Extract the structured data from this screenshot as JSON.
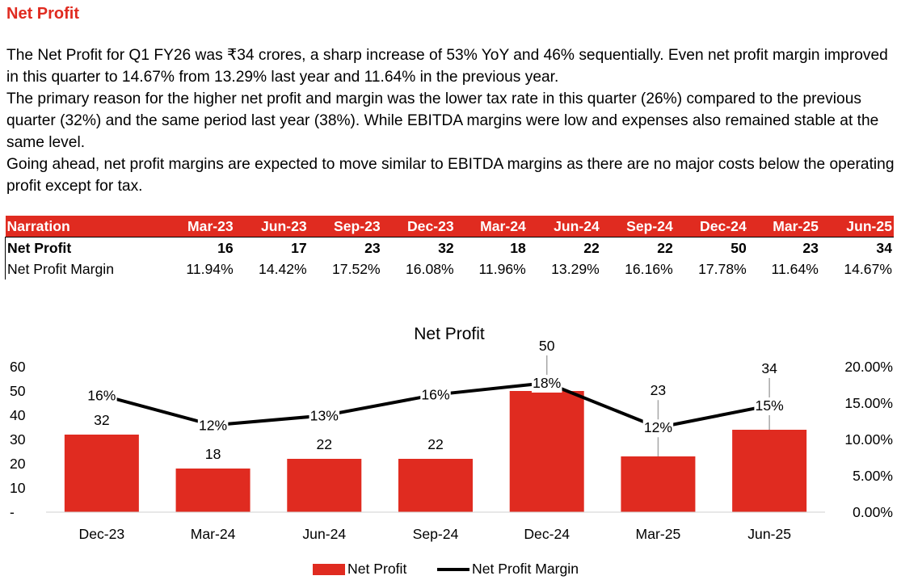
{
  "heading": "Net Profit",
  "paragraphs": [
    "The Net Profit for Q1 FY26 was ₹34 crores, a sharp increase of 53% YoY and 46% sequentially. Even net profit margin improved in this quarter to 14.67% from 13.29% last year and 11.64% in the previous year.",
    "The primary reason for the higher net profit and margin was the lower tax rate in this quarter (26%) compared to the previous quarter (32%) and the same period last year (38%). While EBITDA margins were low and expenses also remained stable at the same level.",
    "Going ahead, net profit margins are expected to move similar to EBITDA margins as there are no major costs below the operating profit except for tax."
  ],
  "table": {
    "header": [
      "Narration",
      "Mar-23",
      "Jun-23",
      "Sep-23",
      "Dec-23",
      "Mar-24",
      "Jun-24",
      "Sep-24",
      "Dec-24",
      "Mar-25",
      "Jun-25"
    ],
    "rows": [
      [
        "Net Profit",
        "16",
        "17",
        "23",
        "32",
        "18",
        "22",
        "22",
        "50",
        "23",
        "34"
      ],
      [
        "Net Profit Margin",
        "11.94%",
        "14.42%",
        "17.52%",
        "16.08%",
        "11.96%",
        "13.29%",
        "16.16%",
        "17.78%",
        "11.64%",
        "14.67%"
      ]
    ]
  },
  "colors": {
    "accent": "#e02b20",
    "line": "#000000"
  },
  "chart_data": {
    "type": "bar",
    "title": "Net Profit",
    "categories": [
      "Dec-23",
      "Mar-24",
      "Jun-24",
      "Sep-24",
      "Dec-24",
      "Mar-25",
      "Jun-25"
    ],
    "series": [
      {
        "name": "Net Profit",
        "type": "bar",
        "axis": "left",
        "values": [
          32,
          18,
          22,
          22,
          50,
          23,
          34
        ],
        "labels": [
          "32",
          "18",
          "22",
          "22",
          "50",
          "23",
          "34"
        ]
      },
      {
        "name": "Net Profit Margin",
        "type": "line",
        "axis": "right",
        "values": [
          16.08,
          11.96,
          13.29,
          16.16,
          17.78,
          11.64,
          14.67
        ],
        "labels": [
          "16%",
          "12%",
          "13%",
          "16%",
          "18%",
          "12%",
          "15%"
        ]
      }
    ],
    "y_left": {
      "ylim": [
        0,
        60
      ],
      "ticks": [
        "-",
        "10",
        "20",
        "30",
        "40",
        "50",
        "60"
      ]
    },
    "y_right": {
      "ylim": [
        0,
        20
      ],
      "ticks": [
        "0.00%",
        "5.00%",
        "10.00%",
        "15.00%",
        "20.00%"
      ]
    },
    "legend": "bottom",
    "grid": false
  }
}
